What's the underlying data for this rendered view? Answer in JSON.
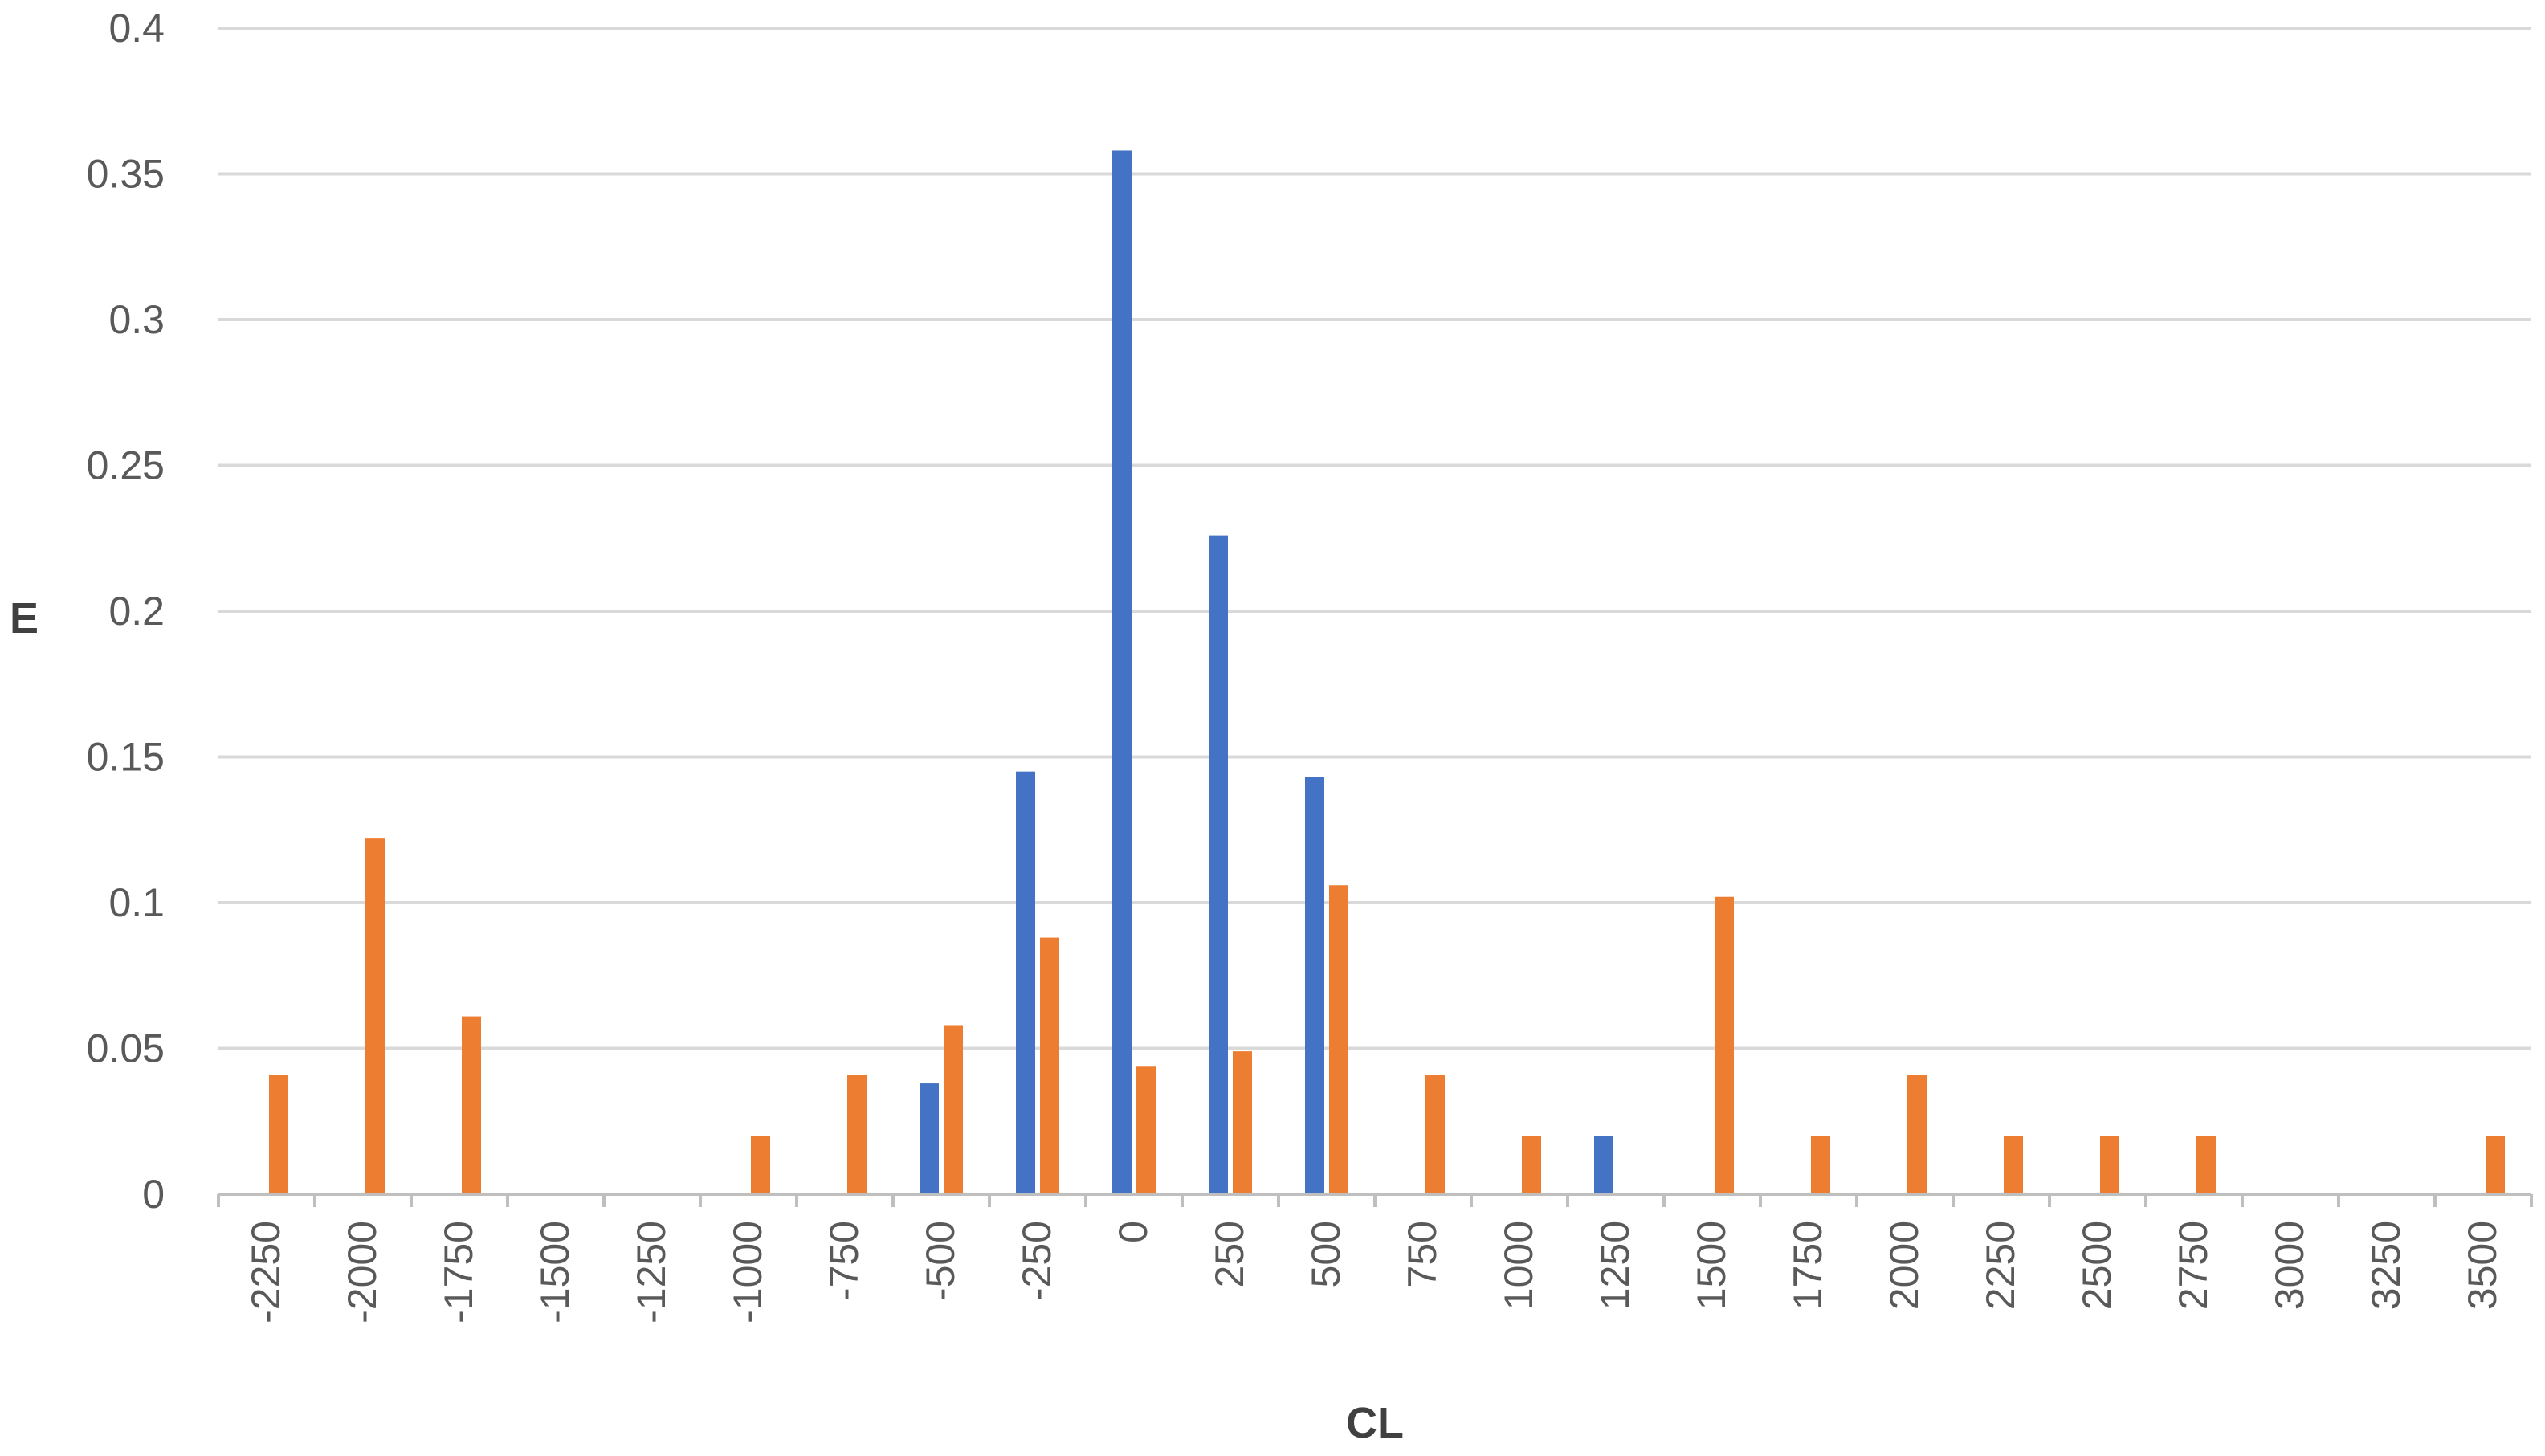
{
  "chart_data": {
    "type": "bar",
    "title": "",
    "xlabel": "CL",
    "ylabel": "E",
    "ylim": [
      0,
      0.4
    ],
    "yticks": [
      "0",
      "0.05",
      "0.1",
      "0.15",
      "0.2",
      "0.25",
      "0.3",
      "0.35",
      "0.4"
    ],
    "grid": true,
    "legend": "none",
    "categories": [
      "-2250",
      "-2000",
      "-1750",
      "-1500",
      "-1250",
      "-1000",
      "-750",
      "-500",
      "-250",
      "0",
      "250",
      "500",
      "750",
      "1000",
      "1250",
      "1500",
      "1750",
      "2000",
      "2250",
      "2500",
      "2750",
      "3000",
      "3250",
      "3500"
    ],
    "series": [
      {
        "color": "#4472C4",
        "values": [
          0,
          0,
          0,
          0,
          0,
          0,
          0,
          0.038,
          0.145,
          0.358,
          0.226,
          0.143,
          0,
          0,
          0.02,
          0,
          0,
          0,
          0,
          0,
          0,
          0,
          0,
          0
        ]
      },
      {
        "color": "#ED7D31",
        "values": [
          0.041,
          0.122,
          0.061,
          0,
          0,
          0.02,
          0.041,
          0.058,
          0.088,
          0.044,
          0.049,
          0.106,
          0.041,
          0.02,
          0,
          0.102,
          0.02,
          0.041,
          0.02,
          0.02,
          0.02,
          0,
          0,
          0.02
        ]
      }
    ]
  }
}
